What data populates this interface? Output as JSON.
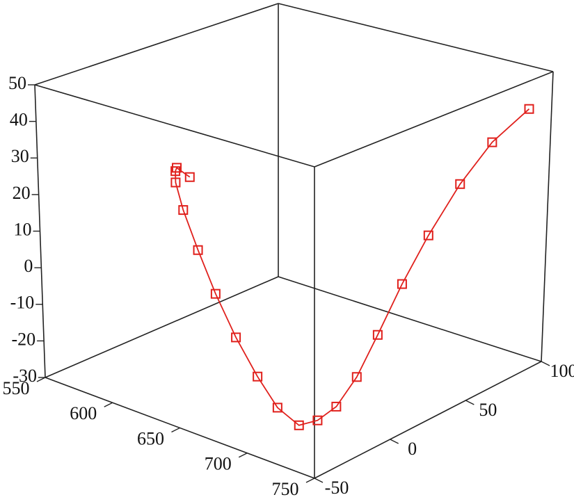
{
  "chart_data": {
    "type": "line3d",
    "color": "#e0201c",
    "marker": "square",
    "x": [
      658,
      651,
      650,
      650,
      654,
      662,
      671,
      681,
      691,
      700,
      708,
      715,
      721,
      727,
      732,
      737,
      741,
      744,
      745,
      745
    ],
    "y": [
      -48,
      -50,
      -50,
      -50,
      -49,
      -47,
      -44,
      -40,
      -35,
      -30,
      -23,
      -17,
      -10,
      -2,
      7,
      18,
      31,
      48,
      67,
      90
    ],
    "z": [
      37,
      39,
      38,
      35,
      28,
      18,
      7,
      -4,
      -14,
      -22,
      -27,
      -26,
      -23,
      -16,
      -6,
      6,
      17,
      28,
      36,
      41
    ],
    "xlim": [
      550,
      750
    ],
    "ylim": [
      -50,
      100
    ],
    "zlim": [
      -30,
      50
    ],
    "xticks": [
      550,
      600,
      650,
      700,
      750
    ],
    "yticks": [
      -50,
      0,
      50,
      100
    ],
    "zticks": [
      -30,
      -20,
      -10,
      0,
      10,
      20,
      30,
      40,
      50
    ]
  }
}
